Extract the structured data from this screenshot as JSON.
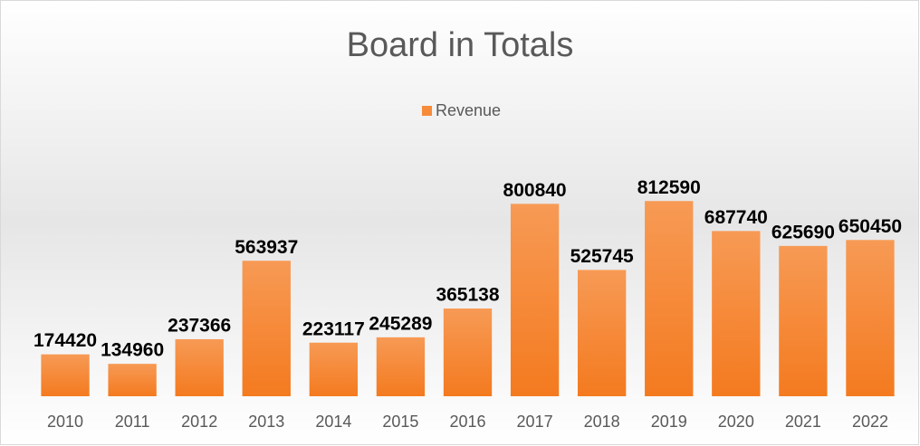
{
  "chart_data": {
    "type": "bar",
    "title": "Board in Totals",
    "categories": [
      "2010",
      "2011",
      "2012",
      "2013",
      "2014",
      "2015",
      "2016",
      "2017",
      "2018",
      "2019",
      "2020",
      "2021",
      "2022"
    ],
    "series": [
      {
        "name": "Revenue",
        "color": "#f68b3a",
        "values": [
          174420,
          134960,
          237366,
          563937,
          223117,
          245289,
          365138,
          800840,
          525745,
          812590,
          687740,
          625690,
          650450
        ]
      }
    ],
    "ylim": [
      0,
      900000
    ],
    "legend": "top"
  }
}
